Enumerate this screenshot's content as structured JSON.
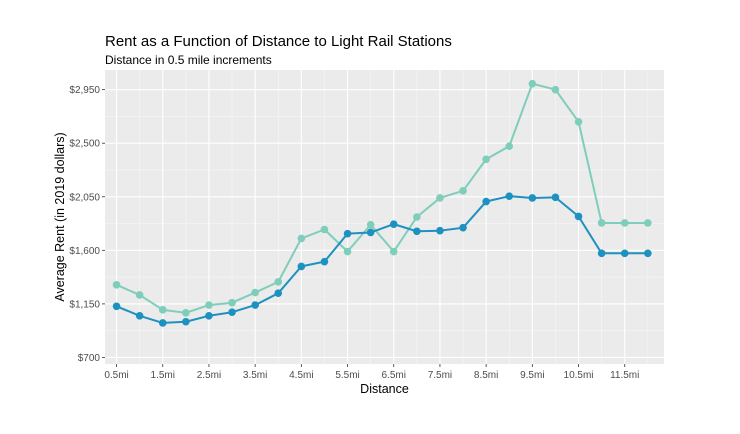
{
  "chart_data": {
    "type": "line",
    "title": "Rent as a Function of Distance to Light Rail Stations",
    "subtitle": "Distance in 0.5 mile increments",
    "xlabel": "Distance",
    "ylabel": "Average Rent (in 2019 dollars)",
    "x_tick_labels": [
      "0.5mi",
      "1.5mi",
      "2.5mi",
      "3.5mi",
      "4.5mi",
      "5.5mi",
      "6.5mi",
      "7.5mi",
      "8.5mi",
      "9.5mi",
      "10.5mi",
      "11.5mi"
    ],
    "x": [
      0.5,
      1,
      1.5,
      2,
      2.5,
      3,
      3.5,
      4,
      4.5,
      5,
      5.5,
      6,
      6.5,
      7,
      7.5,
      8,
      8.5,
      9,
      9.5,
      10,
      10.5,
      11,
      11.5,
      12
    ],
    "xlim": [
      0.25,
      12.35
    ],
    "y_ticks": [
      700,
      1150,
      1600,
      2050,
      2500,
      2950
    ],
    "y_tick_labels": [
      "$700",
      "$1,150",
      "$1,600",
      "$2,050",
      "$2,500",
      "$2,950"
    ],
    "ylim": [
      645,
      3115
    ],
    "grid": true,
    "series": [
      {
        "color": "#7fcdbb",
        "values": [
          1310,
          1225,
          1100,
          1075,
          1140,
          1160,
          1245,
          1335,
          1700,
          1775,
          1590,
          1815,
          1590,
          1880,
          2040,
          2100,
          2365,
          2475,
          3000,
          2950,
          2680,
          1830,
          1830,
          1830
        ]
      },
      {
        "color": "#1d91c0",
        "values": [
          1130,
          1050,
          990,
          1000,
          1050,
          1080,
          1140,
          1240,
          1465,
          1505,
          1740,
          1750,
          1820,
          1760,
          1765,
          1790,
          2010,
          2055,
          2040,
          2045,
          1885,
          1575,
          1575,
          1575
        ]
      }
    ]
  }
}
